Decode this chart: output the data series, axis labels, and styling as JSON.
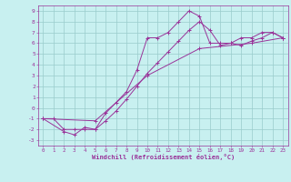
{
  "background_color": "#c8f0f0",
  "grid_color": "#99cccc",
  "line_color": "#993399",
  "xlim": [
    -0.5,
    23.5
  ],
  "ylim": [
    -3.5,
    9.5
  ],
  "xlabel": "Windchill (Refroidissement éolien,°C)",
  "xtick_labels": [
    "0",
    "1",
    "2",
    "3",
    "4",
    "5",
    "6",
    "7",
    "8",
    "9",
    "10",
    "11",
    "12",
    "13",
    "14",
    "15",
    "16",
    "17",
    "18",
    "19",
    "20",
    "21",
    "22",
    "23"
  ],
  "ytick_labels": [
    "-3",
    "-2",
    "-1",
    "0",
    "1",
    "2",
    "3",
    "4",
    "5",
    "6",
    "7",
    "8",
    "9"
  ],
  "lines": [
    {
      "x": [
        0,
        1,
        2,
        3,
        4,
        5,
        6,
        7,
        8,
        9,
        10,
        11,
        12,
        13,
        14,
        15,
        16,
        17,
        18,
        19,
        20,
        21,
        22,
        23
      ],
      "y": [
        -1,
        -1,
        -2,
        -2,
        -2,
        -2,
        -0.5,
        0.5,
        1.5,
        3.5,
        6.5,
        6.5,
        7,
        8,
        9,
        8.5,
        6,
        6,
        6,
        6.5,
        6.5,
        7,
        7,
        6.5
      ]
    },
    {
      "x": [
        0,
        2,
        3,
        4,
        5,
        6,
        7,
        8,
        9,
        10,
        11,
        12,
        13,
        14,
        15,
        16,
        17,
        18,
        19,
        20,
        21,
        22,
        23
      ],
      "y": [
        -1,
        -2.2,
        -2.5,
        -1.8,
        -2,
        -1.2,
        -0.3,
        0.8,
        2,
        3.2,
        4.2,
        5.2,
        6.2,
        7.2,
        8,
        7.2,
        5.8,
        6,
        5.8,
        6.2,
        6.5,
        7,
        6.5
      ]
    },
    {
      "x": [
        0,
        5,
        10,
        15,
        20,
        23
      ],
      "y": [
        -1,
        -1.2,
        3,
        5.5,
        6,
        6.5
      ]
    }
  ]
}
